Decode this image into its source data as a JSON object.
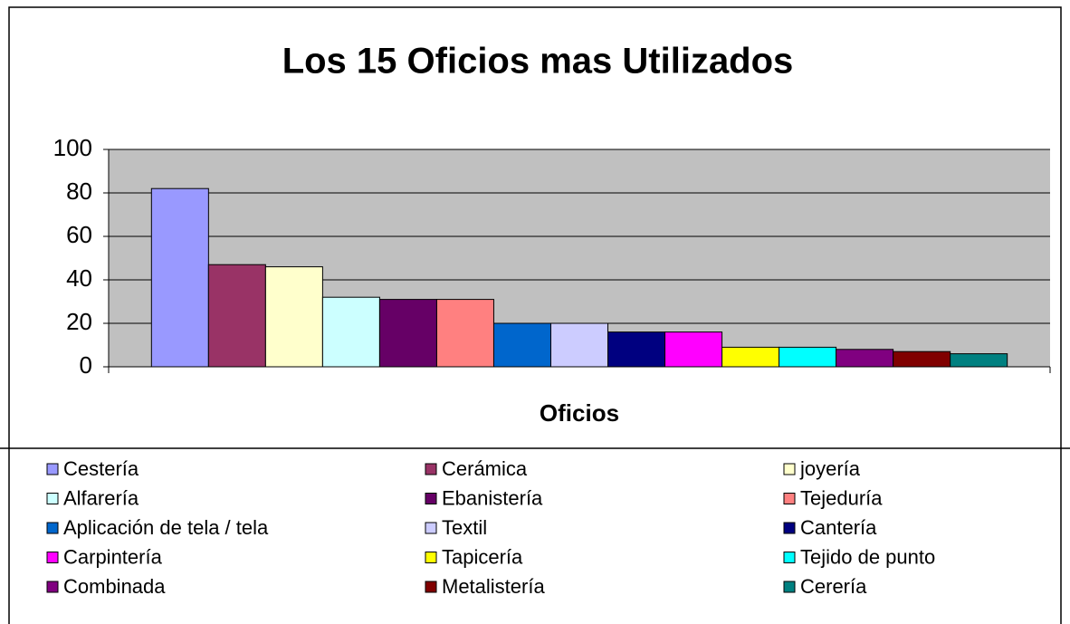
{
  "chart_data": {
    "type": "bar",
    "title": "Los 15 Oficios mas Utilizados",
    "x_label": "Oficios",
    "categories": [
      null
    ],
    "series": [
      {
        "name": "Cestería",
        "color": "#9999ff",
        "values": [
          82
        ]
      },
      {
        "name": "Cerámica",
        "color": "#993366",
        "values": [
          47
        ]
      },
      {
        "name": "joyería",
        "color": "#ffffcc",
        "values": [
          46
        ]
      },
      {
        "name": "Alfarería",
        "color": "#ccffff",
        "values": [
          32
        ]
      },
      {
        "name": "Ebanistería",
        "color": "#660066",
        "values": [
          31
        ]
      },
      {
        "name": "Tejeduría",
        "color": "#ff8080",
        "values": [
          31
        ]
      },
      {
        "name": "Aplicación de tela / tela",
        "color": "#0066cc",
        "values": [
          20
        ]
      },
      {
        "name": "Textil",
        "color": "#ccccff",
        "values": [
          20
        ]
      },
      {
        "name": "Cantería",
        "color": "#000080",
        "values": [
          16
        ]
      },
      {
        "name": "Carpintería",
        "color": "#ff00ff",
        "values": [
          16
        ]
      },
      {
        "name": "Tapicería",
        "color": "#ffff00",
        "values": [
          9
        ]
      },
      {
        "name": "Tejido de punto",
        "color": "#00ffff",
        "values": [
          9
        ]
      },
      {
        "name": "Combinada",
        "color": "#800080",
        "values": [
          8
        ]
      },
      {
        "name": "Metalistería",
        "color": "#800000",
        "values": [
          7
        ]
      },
      {
        "name": "Cerería",
        "color": "#008080",
        "values": [
          6
        ]
      }
    ],
    "ylim": [
      0,
      100
    ],
    "yticks": [
      0,
      20,
      40,
      60,
      80,
      100
    ],
    "grid": true,
    "legend": "bottom"
  }
}
